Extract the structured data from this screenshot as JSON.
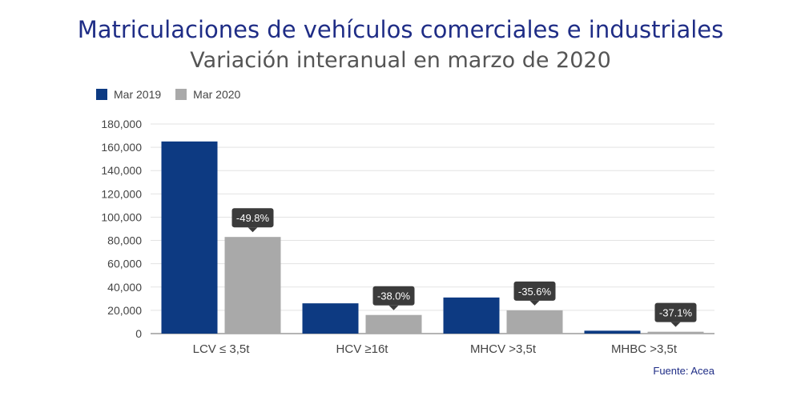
{
  "header": {
    "title": "Matriculaciones de vehículos comerciales e industriales",
    "subtitle": "Variación interanual en marzo de 2020"
  },
  "legend": {
    "items": [
      {
        "label": "Mar 2019",
        "color": "#0d3a82"
      },
      {
        "label": "Mar 2020",
        "color": "#a9a9a9"
      }
    ]
  },
  "source": "Fuente: Acea",
  "chart_data": {
    "type": "bar",
    "title": "Matriculaciones de vehículos comerciales e industriales",
    "subtitle": "Variación interanual en marzo de 2020",
    "categories": [
      "LCV ≤ 3,5t",
      "HCV ≥16t",
      "MHCV >3,5t",
      "MHBC >3,5t"
    ],
    "series": [
      {
        "name": "Mar 2019",
        "color": "#0d3a82",
        "values": [
          165000,
          26000,
          31000,
          2500
        ]
      },
      {
        "name": "Mar 2020",
        "color": "#a9a9a9",
        "values": [
          83000,
          16000,
          20000,
          1600
        ]
      }
    ],
    "annotations": [
      "-49.8%",
      "-38.0%",
      "-35.6%",
      "-37.1%"
    ],
    "ylim": [
      0,
      180000
    ],
    "yticks": [
      0,
      20000,
      40000,
      60000,
      80000,
      100000,
      120000,
      140000,
      160000,
      180000
    ],
    "ytick_labels": [
      "0",
      "20,000",
      "40,000",
      "60,000",
      "80,000",
      "100,000",
      "120,000",
      "140,000",
      "160,000",
      "180,000"
    ],
    "xlabel": "",
    "ylabel": "",
    "grid": true,
    "legend_position": "top-left"
  }
}
